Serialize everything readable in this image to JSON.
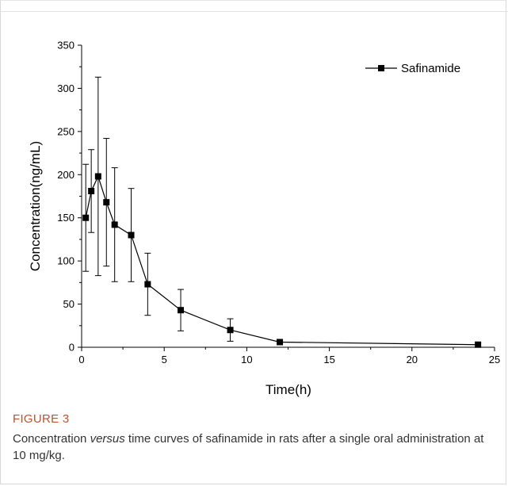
{
  "chart_data": {
    "type": "line",
    "title": "",
    "xlabel": "Time(h)",
    "ylabel": "Concentration(ng/mL)",
    "xlim": [
      0,
      25
    ],
    "ylim": [
      0,
      350
    ],
    "x_ticks": [
      "0",
      "5",
      "10",
      "15",
      "20",
      "25"
    ],
    "y_ticks": [
      "0",
      "50",
      "100",
      "150",
      "200",
      "250",
      "300",
      "350"
    ],
    "legend_position": "top-right",
    "grid": false,
    "series": [
      {
        "name": "Safinamide",
        "marker": "square",
        "color": "#000000",
        "x": [
          0.25,
          0.583,
          1,
          1.5,
          2,
          3,
          4,
          6,
          9,
          12,
          24
        ],
        "y": [
          150,
          181,
          198,
          168,
          142,
          130,
          73,
          43,
          20,
          6,
          3
        ],
        "error": [
          62,
          48,
          115,
          74,
          66,
          54,
          36,
          24,
          13,
          0,
          0
        ]
      }
    ]
  },
  "caption": {
    "label": "FIGURE 3",
    "text_before": "Concentration ",
    "text_italic": "versus",
    "text_after": " time curves of safinamide in rats after a single oral administration at 10 mg/kg."
  }
}
